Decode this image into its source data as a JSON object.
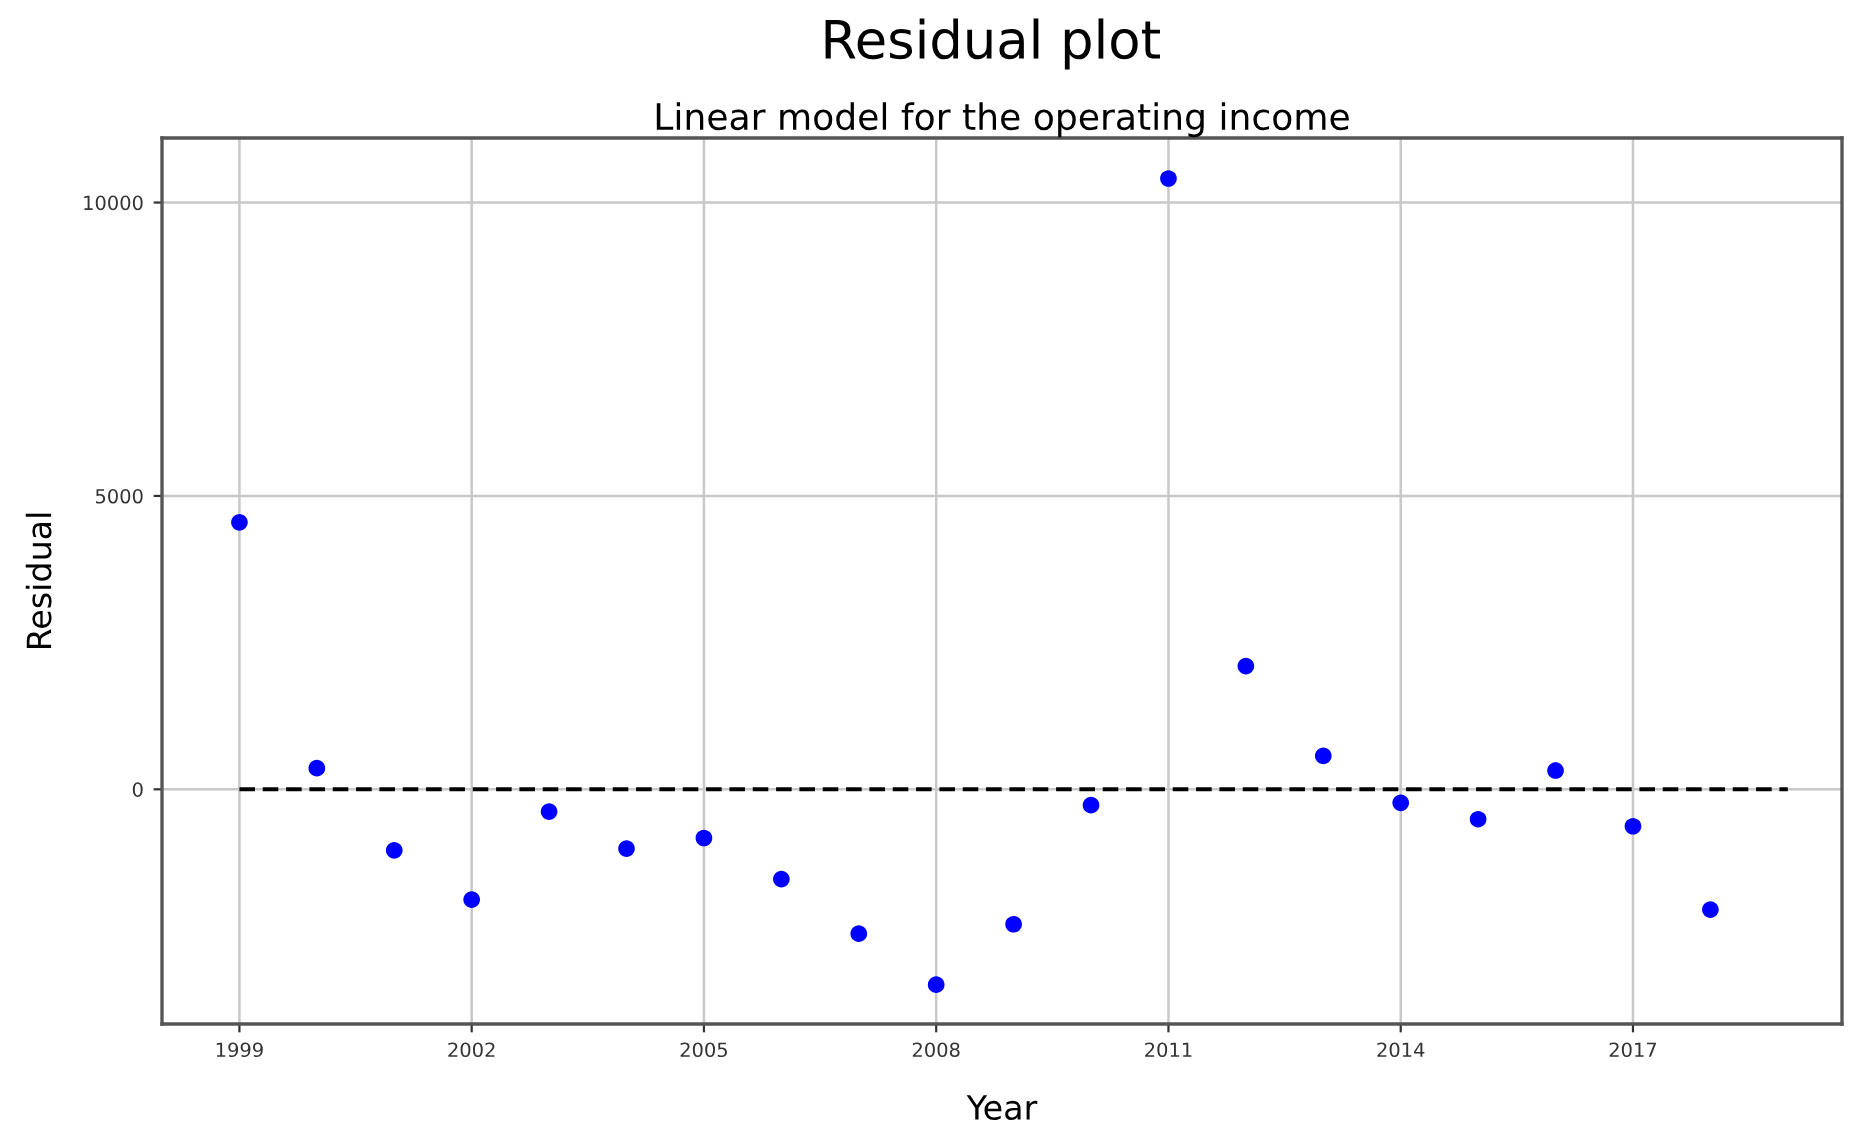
{
  "chart_data": {
    "type": "scatter",
    "title": "Residual plot",
    "subtitle": "Linear model for the operating income",
    "xlabel": "Year",
    "ylabel": "Residual",
    "x": [
      1999,
      2000,
      2001,
      2002,
      2003,
      2004,
      2005,
      2006,
      2007,
      2008,
      2009,
      2010,
      2011,
      2012,
      2013,
      2014,
      2015,
      2016,
      2017,
      2018
    ],
    "series": [
      {
        "color": "#0000ff",
        "marker": "circle",
        "values": [
          4550,
          360,
          -1040,
          -1880,
          -380,
          -1010,
          -830,
          -1530,
          -2460,
          -3330,
          -2300,
          -270,
          10410,
          2100,
          570,
          -230,
          -510,
          320,
          -630,
          -2050
        ]
      },
      {
        "type": "line",
        "color": "#000000",
        "line_style": "dashed",
        "marker": "none",
        "x": [
          1999,
          2019
        ],
        "values": [
          0,
          0
        ]
      }
    ],
    "xlim": [
      1998,
      2019.7
    ],
    "ylim": [
      -4000,
      11100
    ],
    "xticks": [
      1999,
      2002,
      2005,
      2008,
      2011,
      2014,
      2017
    ],
    "yticks": [
      0,
      5000,
      10000
    ],
    "grid": true,
    "legend": false
  }
}
